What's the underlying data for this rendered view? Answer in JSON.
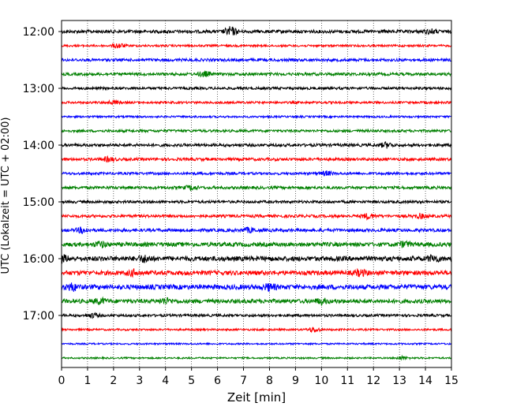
{
  "chart_data": {
    "type": "line",
    "subtype": "helicorder",
    "xlabel": "Zeit  [min]",
    "ylabel": "UTC (Lokalzeit = UTC + 02:00)",
    "xlim": [
      0,
      15
    ],
    "x_ticks": [
      "0",
      "1",
      "2",
      "3",
      "4",
      "5",
      "6",
      "7",
      "8",
      "9",
      "10",
      "11",
      "12",
      "13",
      "14",
      "15"
    ],
    "y_tick_labels": [
      "12:00",
      "13:00",
      "14:00",
      "15:00",
      "16:00",
      "17:00"
    ],
    "grid": "vertical dotted lines at each minute",
    "trace_colors": [
      "#000000",
      "#ff0000",
      "#0000ff",
      "#008000"
    ],
    "traces": [
      {
        "start": "12:00",
        "color": "#000000",
        "noise": 2.0,
        "bursts": [
          [
            6.5,
            5.5
          ],
          [
            14.2,
            2.5
          ]
        ]
      },
      {
        "start": "12:15",
        "color": "#ff0000",
        "noise": 1.3,
        "bursts": [
          [
            2.2,
            3.0
          ]
        ]
      },
      {
        "start": "12:30",
        "color": "#0000ff",
        "noise": 1.8,
        "bursts": []
      },
      {
        "start": "12:45",
        "color": "#008000",
        "noise": 1.8,
        "bursts": [
          [
            5.5,
            3.0
          ]
        ]
      },
      {
        "start": "13:00",
        "color": "#000000",
        "noise": 1.6,
        "bursts": []
      },
      {
        "start": "13:15",
        "color": "#ff0000",
        "noise": 1.4,
        "bursts": [
          [
            2.0,
            2.0
          ]
        ]
      },
      {
        "start": "13:30",
        "color": "#0000ff",
        "noise": 1.2,
        "bursts": []
      },
      {
        "start": "13:45",
        "color": "#008000",
        "noise": 1.6,
        "bursts": []
      },
      {
        "start": "14:00",
        "color": "#000000",
        "noise": 1.8,
        "bursts": [
          [
            12.5,
            3.0
          ]
        ]
      },
      {
        "start": "14:15",
        "color": "#ff0000",
        "noise": 1.8,
        "bursts": [
          [
            1.8,
            2.5
          ]
        ]
      },
      {
        "start": "14:30",
        "color": "#0000ff",
        "noise": 1.6,
        "bursts": [
          [
            10.2,
            2.5
          ]
        ]
      },
      {
        "start": "14:45",
        "color": "#008000",
        "noise": 1.8,
        "bursts": [
          [
            5.0,
            2.5
          ]
        ]
      },
      {
        "start": "15:00",
        "color": "#000000",
        "noise": 1.7,
        "bursts": []
      },
      {
        "start": "15:15",
        "color": "#ff0000",
        "noise": 1.8,
        "bursts": [
          [
            11.8,
            3.0
          ],
          [
            13.8,
            2.5
          ]
        ]
      },
      {
        "start": "15:30",
        "color": "#0000ff",
        "noise": 2.0,
        "bursts": [
          [
            0.8,
            3.0
          ],
          [
            7.2,
            2.5
          ]
        ]
      },
      {
        "start": "15:45",
        "color": "#008000",
        "noise": 2.6,
        "bursts": [
          [
            1.5,
            3.0
          ],
          [
            13.2,
            3.0
          ]
        ]
      },
      {
        "start": "16:00",
        "color": "#000000",
        "noise": 3.0,
        "bursts": [
          [
            0.0,
            4.0
          ],
          [
            3.2,
            3.5
          ],
          [
            14.3,
            3.5
          ]
        ]
      },
      {
        "start": "16:15",
        "color": "#ff0000",
        "noise": 2.8,
        "bursts": [
          [
            2.8,
            3.0
          ],
          [
            11.5,
            3.0
          ]
        ]
      },
      {
        "start": "16:30",
        "color": "#0000ff",
        "noise": 3.0,
        "bursts": [
          [
            0.4,
            4.0
          ],
          [
            8.0,
            3.5
          ]
        ]
      },
      {
        "start": "16:45",
        "color": "#008000",
        "noise": 2.6,
        "bursts": [
          [
            1.5,
            3.0
          ],
          [
            4.0,
            3.0
          ],
          [
            10.0,
            3.0
          ]
        ]
      },
      {
        "start": "17:00",
        "color": "#000000",
        "noise": 1.6,
        "bursts": [
          [
            1.2,
            2.5
          ]
        ]
      },
      {
        "start": "17:15",
        "color": "#ff0000",
        "noise": 1.2,
        "bursts": [
          [
            9.7,
            3.0
          ]
        ]
      },
      {
        "start": "17:30",
        "color": "#0000ff",
        "noise": 1.0,
        "bursts": []
      },
      {
        "start": "17:45",
        "color": "#008000",
        "noise": 1.0,
        "bursts": [
          [
            13.1,
            2.0
          ]
        ]
      }
    ]
  }
}
